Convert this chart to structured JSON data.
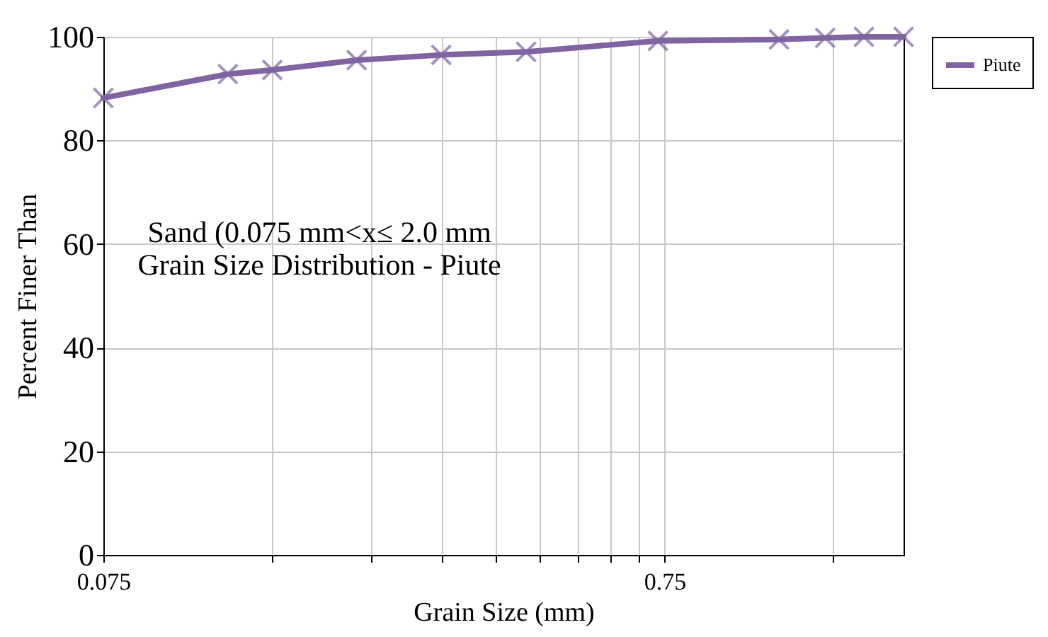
{
  "chart_data": {
    "type": "line",
    "xlabel": "Grain Size (mm)",
    "ylabel": "Percent Finer Than",
    "annotations": [
      "Sand (0.075 mm<x≤ 2.0 mm\nGrain Size Distribution - Piute"
    ],
    "x": [
      0.075,
      0.125,
      0.15,
      0.212,
      0.3,
      0.425,
      0.73,
      1.2,
      1.45,
      1.7,
      2.0
    ],
    "series": [
      {
        "name": "Piute",
        "color": "#8064a2",
        "values": [
          88.2,
          92.8,
          93.6,
          95.5,
          96.5,
          97.1,
          99.2,
          99.5,
          99.8,
          100,
          100
        ]
      }
    ],
    "log": "x",
    "xlim": [
      0.075,
      2.0
    ],
    "xticks": [
      0.075,
      {
        "value": 0.15,
        "label": null
      },
      {
        "value": 0.225,
        "label": null
      },
      {
        "value": 0.3,
        "label": null
      },
      {
        "value": 0.375,
        "label": null
      },
      {
        "value": 0.45,
        "label": null
      },
      {
        "value": 0.525,
        "label": null
      },
      {
        "value": 0.6,
        "label": null
      },
      {
        "value": 0.675,
        "label": null
      },
      0.75,
      {
        "value": 1.5,
        "label": null
      }
    ],
    "ylim": [
      0,
      100
    ],
    "yticks": [
      0,
      20,
      40,
      60,
      80,
      100
    ],
    "grid": true,
    "legend": "right",
    "marker": "cross",
    "line_style": "solid"
  }
}
